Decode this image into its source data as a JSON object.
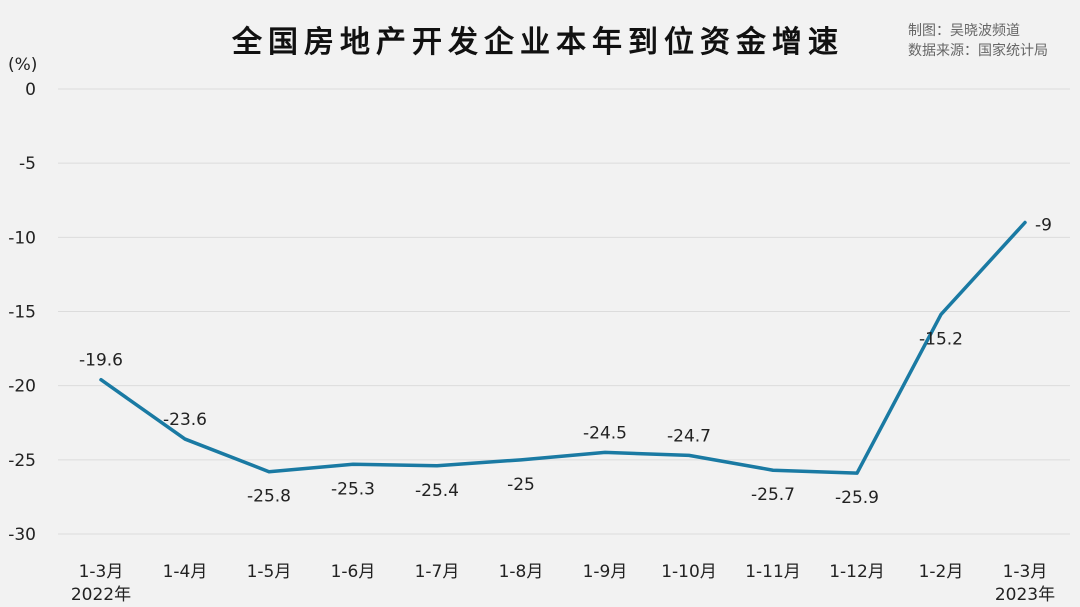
{
  "credits": {
    "made_by": "制图：吴晓波频道",
    "source": "数据来源：国家统计局"
  },
  "chart_data": {
    "type": "line",
    "title": "全国房地产开发企业本年到位资金增速",
    "ylabel": "(%)",
    "ylim": [
      -30,
      0
    ],
    "yticks": [
      0,
      -5,
      -10,
      -15,
      -20,
      -25,
      -30
    ],
    "grid": true,
    "categories": [
      "1-3月",
      "1-4月",
      "1-5月",
      "1-6月",
      "1-7月",
      "1-8月",
      "1-9月",
      "1-10月",
      "1-11月",
      "1-12月",
      "1-2月",
      "1-3月"
    ],
    "year_labels": {
      "0": "2022年",
      "11": "2023年"
    },
    "series": [
      {
        "values": [
          -19.6,
          -23.6,
          -25.8,
          -25.3,
          -25.4,
          -25,
          -24.5,
          -24.7,
          -25.7,
          -25.9,
          -15.2,
          -9
        ],
        "labels": [
          "-19.6",
          "-23.6",
          "-25.8",
          "-25.3",
          "-25.4",
          "-25",
          "-24.5",
          "-24.7",
          "-25.7",
          "-25.9",
          "-15.2",
          "-9"
        ],
        "label_pos": [
          "above",
          "above",
          "below",
          "below",
          "below",
          "below",
          "above",
          "above",
          "below",
          "below",
          "below",
          "right"
        ],
        "color": "#1a7aa3"
      }
    ]
  }
}
